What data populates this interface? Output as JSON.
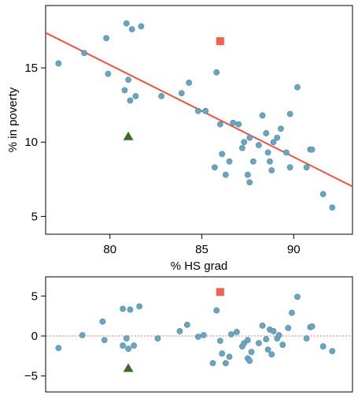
{
  "colors": {
    "points": "#6aa4bf",
    "points_edge": "#4f8aa5",
    "fit_line": "#e8523f",
    "outlier_square": "#f4614d",
    "outlier_triangle": "#3f6b2a",
    "zero_line": "#e8523f",
    "frame": "#000000"
  },
  "chart_data": [
    {
      "type": "scatter",
      "title": "",
      "xlabel": "% HS grad",
      "ylabel": "% in poverty",
      "xlim": [
        76.5,
        93.2
      ],
      "ylim": [
        3.8,
        19.2
      ],
      "xticks": [
        80,
        85,
        90
      ],
      "xtick_labels": [
        "80",
        "85",
        "90"
      ],
      "yticks": [
        5,
        10,
        15
      ],
      "ytick_labels": [
        "5",
        "10",
        "15"
      ],
      "fit_line": {
        "intercept": 64.8,
        "slope": -0.62
      },
      "points": [
        {
          "x": 77.2,
          "y": 15.3
        },
        {
          "x": 78.6,
          "y": 16.0
        },
        {
          "x": 79.8,
          "y": 17.0
        },
        {
          "x": 79.9,
          "y": 14.6
        },
        {
          "x": 80.8,
          "y": 13.5
        },
        {
          "x": 80.9,
          "y": 18.0
        },
        {
          "x": 81.0,
          "y": 14.2
        },
        {
          "x": 81.2,
          "y": 17.6
        },
        {
          "x": 81.7,
          "y": 17.8
        },
        {
          "x": 81.1,
          "y": 12.8
        },
        {
          "x": 81.4,
          "y": 13.1
        },
        {
          "x": 82.8,
          "y": 13.1
        },
        {
          "x": 83.9,
          "y": 13.3
        },
        {
          "x": 84.3,
          "y": 14.0
        },
        {
          "x": 84.8,
          "y": 12.1
        },
        {
          "x": 85.2,
          "y": 12.1
        },
        {
          "x": 85.8,
          "y": 14.7
        },
        {
          "x": 86.0,
          "y": 11.2
        },
        {
          "x": 86.1,
          "y": 9.2
        },
        {
          "x": 85.7,
          "y": 8.3
        },
        {
          "x": 86.3,
          "y": 7.8
        },
        {
          "x": 86.5,
          "y": 8.7
        },
        {
          "x": 86.7,
          "y": 11.3
        },
        {
          "x": 87.0,
          "y": 11.2
        },
        {
          "x": 87.2,
          "y": 9.6
        },
        {
          "x": 87.3,
          "y": 10.0
        },
        {
          "x": 87.6,
          "y": 10.3
        },
        {
          "x": 87.5,
          "y": 7.8
        },
        {
          "x": 87.6,
          "y": 7.3
        },
        {
          "x": 87.8,
          "y": 8.7
        },
        {
          "x": 88.1,
          "y": 9.8
        },
        {
          "x": 88.3,
          "y": 11.8
        },
        {
          "x": 88.5,
          "y": 10.6
        },
        {
          "x": 88.6,
          "y": 9.3
        },
        {
          "x": 88.7,
          "y": 8.7
        },
        {
          "x": 88.8,
          "y": 8.1
        },
        {
          "x": 88.9,
          "y": 10.0
        },
        {
          "x": 89.1,
          "y": 10.3
        },
        {
          "x": 89.3,
          "y": 10.9
        },
        {
          "x": 89.6,
          "y": 9.3
        },
        {
          "x": 89.8,
          "y": 8.3
        },
        {
          "x": 89.8,
          "y": 11.9
        },
        {
          "x": 90.2,
          "y": 13.7
        },
        {
          "x": 90.7,
          "y": 8.3
        },
        {
          "x": 90.9,
          "y": 9.5
        },
        {
          "x": 91.0,
          "y": 9.5
        },
        {
          "x": 91.6,
          "y": 6.5
        },
        {
          "x": 92.1,
          "y": 5.6
        }
      ],
      "outliers": [
        {
          "x": 86.0,
          "y": 16.8,
          "marker": "square"
        },
        {
          "x": 81.0,
          "y": 10.4,
          "marker": "triangle"
        }
      ]
    },
    {
      "type": "scatter",
      "title": "",
      "xlabel": "",
      "ylabel": "",
      "xlim": [
        76.5,
        93.2
      ],
      "ylim": [
        -7.0,
        7.4
      ],
      "yticks": [
        -5,
        0,
        5
      ],
      "ytick_labels": [
        "−5",
        "0",
        "5"
      ],
      "reference_line_y": 0,
      "points": [
        {
          "x": 77.2,
          "y": -1.5
        },
        {
          "x": 78.5,
          "y": 0.1
        },
        {
          "x": 79.6,
          "y": 1.8
        },
        {
          "x": 79.7,
          "y": -0.5
        },
        {
          "x": 80.7,
          "y": 3.4
        },
        {
          "x": 80.7,
          "y": -1.2
        },
        {
          "x": 80.9,
          "y": -0.3
        },
        {
          "x": 81.0,
          "y": -1.6
        },
        {
          "x": 81.1,
          "y": 3.3
        },
        {
          "x": 81.3,
          "y": -1.2
        },
        {
          "x": 81.6,
          "y": 3.7
        },
        {
          "x": 82.6,
          "y": -0.3
        },
        {
          "x": 83.8,
          "y": 0.6
        },
        {
          "x": 84.2,
          "y": 1.4
        },
        {
          "x": 84.8,
          "y": -0.1
        },
        {
          "x": 85.1,
          "y": 0.1
        },
        {
          "x": 85.8,
          "y": 3.2
        },
        {
          "x": 85.6,
          "y": -3.4
        },
        {
          "x": 86.0,
          "y": -0.6
        },
        {
          "x": 86.1,
          "y": -2.2
        },
        {
          "x": 86.3,
          "y": -3.4
        },
        {
          "x": 86.5,
          "y": -2.6
        },
        {
          "x": 86.6,
          "y": 0.2
        },
        {
          "x": 86.9,
          "y": 0.5
        },
        {
          "x": 87.2,
          "y": -1.3
        },
        {
          "x": 87.3,
          "y": -0.9
        },
        {
          "x": 87.5,
          "y": -0.5
        },
        {
          "x": 87.5,
          "y": -2.8
        },
        {
          "x": 87.6,
          "y": -3.1
        },
        {
          "x": 87.7,
          "y": -2.0
        },
        {
          "x": 88.1,
          "y": -0.9
        },
        {
          "x": 88.3,
          "y": 1.3
        },
        {
          "x": 88.5,
          "y": -0.4
        },
        {
          "x": 88.6,
          "y": -1.7
        },
        {
          "x": 88.7,
          "y": 0.8
        },
        {
          "x": 88.8,
          "y": -2.3
        },
        {
          "x": 88.9,
          "y": 0.6
        },
        {
          "x": 89.1,
          "y": -0.3
        },
        {
          "x": 89.2,
          "y": 0.1
        },
        {
          "x": 89.4,
          "y": -1.1
        },
        {
          "x": 89.7,
          "y": 1.0
        },
        {
          "x": 89.9,
          "y": 2.9
        },
        {
          "x": 90.2,
          "y": 4.9
        },
        {
          "x": 90.7,
          "y": -0.3
        },
        {
          "x": 90.9,
          "y": 1.1
        },
        {
          "x": 91.0,
          "y": 1.2
        },
        {
          "x": 91.6,
          "y": -1.3
        },
        {
          "x": 92.1,
          "y": -1.9
        }
      ],
      "outliers": [
        {
          "x": 86.0,
          "y": 5.5,
          "marker": "square"
        },
        {
          "x": 81.0,
          "y": -4.0,
          "marker": "triangle"
        }
      ]
    }
  ]
}
